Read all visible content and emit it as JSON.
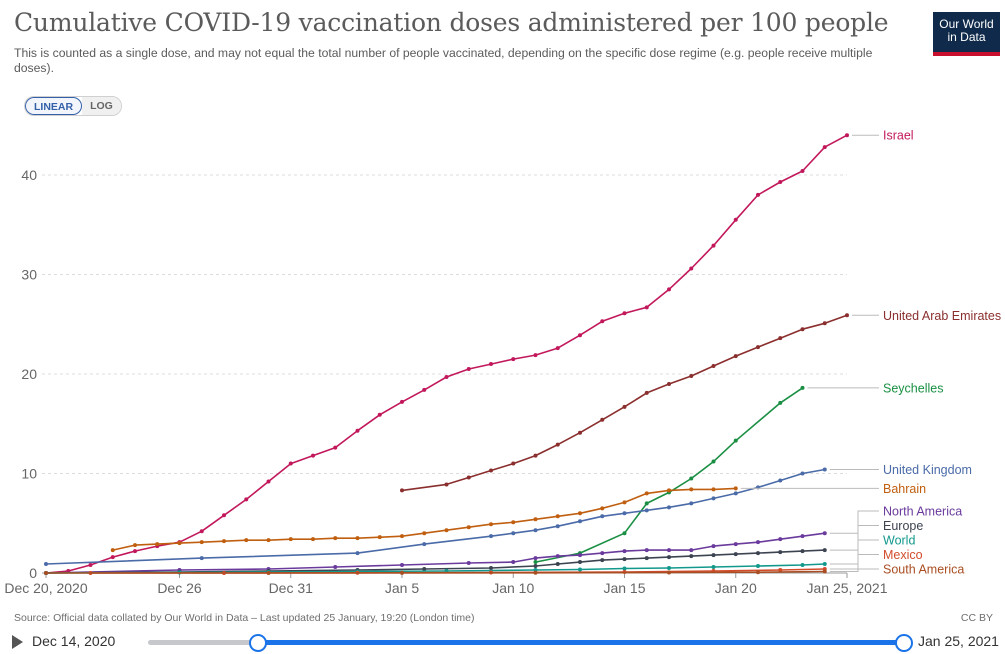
{
  "header": {
    "title": "Cumulative COVID-19 vaccination doses administered per 100 people",
    "subtitle": "This is counted as a single dose, and may not equal the total number of people vaccinated, depending on the specific dose regime (e.g. people receive multiple doses).",
    "logo_line1": "Our World",
    "logo_line2": "in Data",
    "logo_colors": {
      "background": "#0f2a4a",
      "stripe": "#c8102e"
    }
  },
  "scale_toggle": {
    "options": [
      "LINEAR",
      "LOG"
    ],
    "selected": "LINEAR"
  },
  "footer": {
    "source": "Source: Official data collated by Our World in Data – Last updated 25 January, 19:20 (London time)",
    "license": "CC BY"
  },
  "timeline": {
    "start_label": "Dec 14, 2020",
    "end_label": "Jan 25, 2021",
    "play_icon": "play-icon"
  },
  "chart_data": {
    "type": "line",
    "ylim": [
      0,
      44
    ],
    "y_ticks": [
      0,
      10,
      20,
      30,
      40
    ],
    "x_ticks": [
      {
        "day": 0,
        "label": "Dec 20, 2020"
      },
      {
        "day": 6,
        "label": "Dec 26"
      },
      {
        "day": 11,
        "label": "Dec 31"
      },
      {
        "day": 16,
        "label": "Jan 5"
      },
      {
        "day": 21,
        "label": "Jan 10"
      },
      {
        "day": 26,
        "label": "Jan 15"
      },
      {
        "day": 31,
        "label": "Jan 20"
      },
      {
        "day": 36,
        "label": "Jan 25, 2021"
      }
    ],
    "grid": "horizontal",
    "series": [
      {
        "name": "Israel",
        "color": "#c2185b",
        "values": [
          [
            0,
            0
          ],
          [
            1,
            0.2
          ],
          [
            2,
            0.8
          ],
          [
            3,
            1.6
          ],
          [
            4,
            2.2
          ],
          [
            5,
            2.7
          ],
          [
            6,
            3.1
          ],
          [
            7,
            4.2
          ],
          [
            8,
            5.8
          ],
          [
            9,
            7.4
          ],
          [
            10,
            9.2
          ],
          [
            11,
            11
          ],
          [
            12,
            11.8
          ],
          [
            13,
            12.6
          ],
          [
            14,
            14.3
          ],
          [
            15,
            15.9
          ],
          [
            16,
            17.2
          ],
          [
            17,
            18.4
          ],
          [
            18,
            19.7
          ],
          [
            19,
            20.5
          ],
          [
            20,
            21
          ],
          [
            21,
            21.5
          ],
          [
            22,
            21.9
          ],
          [
            23,
            22.6
          ],
          [
            24,
            23.9
          ],
          [
            25,
            25.3
          ],
          [
            26,
            26.1
          ],
          [
            27,
            26.7
          ],
          [
            28,
            28.5
          ],
          [
            29,
            30.6
          ],
          [
            30,
            32.9
          ],
          [
            31,
            35.5
          ],
          [
            32,
            38
          ],
          [
            33,
            39.3
          ],
          [
            34,
            40.4
          ],
          [
            35,
            42.8
          ],
          [
            36,
            44
          ]
        ]
      },
      {
        "name": "United Arab Emirates",
        "color": "#8b2e2e",
        "values": [
          [
            16,
            8.3
          ],
          [
            18,
            8.9
          ],
          [
            19,
            9.6
          ],
          [
            20,
            10.3
          ],
          [
            21,
            11
          ],
          [
            22,
            11.8
          ],
          [
            23,
            12.9
          ],
          [
            24,
            14.1
          ],
          [
            25,
            15.4
          ],
          [
            26,
            16.7
          ],
          [
            27,
            18.1
          ],
          [
            28,
            19
          ],
          [
            29,
            19.8
          ],
          [
            30,
            20.8
          ],
          [
            31,
            21.8
          ],
          [
            32,
            22.7
          ],
          [
            33,
            23.6
          ],
          [
            34,
            24.5
          ],
          [
            35,
            25.1
          ],
          [
            36,
            25.9
          ]
        ]
      },
      {
        "name": "Seychelles",
        "color": "#1a8f43",
        "values": [
          [
            22,
            1.1
          ],
          [
            24,
            2
          ],
          [
            26,
            4
          ],
          [
            27,
            7
          ],
          [
            28,
            8.1
          ],
          [
            29,
            9.5
          ],
          [
            30,
            11.2
          ],
          [
            31,
            13.3
          ],
          [
            33,
            17.1
          ],
          [
            34,
            18.6
          ]
        ]
      },
      {
        "name": "United Kingdom",
        "color": "#4a6ba8",
        "values": [
          [
            0,
            0.9
          ],
          [
            7,
            1.5
          ],
          [
            14,
            2
          ],
          [
            17,
            2.9
          ],
          [
            20,
            3.7
          ],
          [
            21,
            4
          ],
          [
            22,
            4.3
          ],
          [
            23,
            4.7
          ],
          [
            24,
            5.2
          ],
          [
            25,
            5.7
          ],
          [
            26,
            6
          ],
          [
            27,
            6.3
          ],
          [
            28,
            6.6
          ],
          [
            29,
            7
          ],
          [
            30,
            7.5
          ],
          [
            31,
            8
          ],
          [
            32,
            8.6
          ],
          [
            33,
            9.3
          ],
          [
            34,
            10
          ],
          [
            35,
            10.4
          ]
        ]
      },
      {
        "name": "Bahrain",
        "color": "#c05f10",
        "values": [
          [
            3,
            2.3
          ],
          [
            4,
            2.8
          ],
          [
            5,
            2.9
          ],
          [
            6,
            3
          ],
          [
            7,
            3.1
          ],
          [
            8,
            3.2
          ],
          [
            9,
            3.3
          ],
          [
            10,
            3.3
          ],
          [
            11,
            3.4
          ],
          [
            12,
            3.4
          ],
          [
            13,
            3.5
          ],
          [
            14,
            3.5
          ],
          [
            15,
            3.6
          ],
          [
            16,
            3.7
          ],
          [
            17,
            4
          ],
          [
            18,
            4.3
          ],
          [
            19,
            4.6
          ],
          [
            20,
            4.9
          ],
          [
            21,
            5.1
          ],
          [
            22,
            5.4
          ],
          [
            23,
            5.7
          ],
          [
            24,
            6
          ],
          [
            25,
            6.5
          ],
          [
            26,
            7.1
          ],
          [
            27,
            8
          ],
          [
            28,
            8.3
          ],
          [
            29,
            8.4
          ],
          [
            30,
            8.4
          ],
          [
            31,
            8.5
          ]
        ]
      },
      {
        "name": "North America",
        "color": "#6a3a9c",
        "values": [
          [
            0,
            0
          ],
          [
            6,
            0.3
          ],
          [
            10,
            0.4
          ],
          [
            13,
            0.6
          ],
          [
            16,
            0.8
          ],
          [
            19,
            1
          ],
          [
            21,
            1.1
          ],
          [
            22,
            1.5
          ],
          [
            23,
            1.7
          ],
          [
            24,
            1.8
          ],
          [
            25,
            2
          ],
          [
            26,
            2.2
          ],
          [
            27,
            2.3
          ],
          [
            28,
            2.3
          ],
          [
            29,
            2.3
          ],
          [
            30,
            2.7
          ],
          [
            31,
            2.9
          ],
          [
            32,
            3.1
          ],
          [
            33,
            3.4
          ],
          [
            34,
            3.7
          ],
          [
            35,
            4
          ]
        ]
      },
      {
        "name": "Europe",
        "color": "#3d4451",
        "values": [
          [
            0,
            0
          ],
          [
            6,
            0.1
          ],
          [
            10,
            0.2
          ],
          [
            14,
            0.3
          ],
          [
            17,
            0.4
          ],
          [
            20,
            0.5
          ],
          [
            22,
            0.7
          ],
          [
            23,
            0.9
          ],
          [
            24,
            1.1
          ],
          [
            25,
            1.3
          ],
          [
            26,
            1.4
          ],
          [
            27,
            1.5
          ],
          [
            28,
            1.6
          ],
          [
            29,
            1.7
          ],
          [
            30,
            1.8
          ],
          [
            31,
            1.9
          ],
          [
            32,
            2
          ],
          [
            33,
            2.1
          ],
          [
            34,
            2.2
          ],
          [
            35,
            2.3
          ]
        ]
      },
      {
        "name": "World",
        "color": "#12998c",
        "values": [
          [
            0,
            0
          ],
          [
            6,
            0.05
          ],
          [
            10,
            0.1
          ],
          [
            14,
            0.15
          ],
          [
            18,
            0.2
          ],
          [
            22,
            0.3
          ],
          [
            24,
            0.35
          ],
          [
            26,
            0.45
          ],
          [
            28,
            0.5
          ],
          [
            30,
            0.6
          ],
          [
            32,
            0.7
          ],
          [
            34,
            0.8
          ],
          [
            35,
            0.9
          ]
        ]
      },
      {
        "name": "Mexico",
        "color": "#d24c2c",
        "values": [
          [
            2,
            0
          ],
          [
            8,
            0
          ],
          [
            14,
            0.02
          ],
          [
            20,
            0.05
          ],
          [
            26,
            0.1
          ],
          [
            30,
            0.2
          ],
          [
            33,
            0.3
          ],
          [
            35,
            0.4
          ]
        ]
      },
      {
        "name": "South America",
        "color": "#a94e22",
        "values": [
          [
            0,
            0
          ],
          [
            10,
            0
          ],
          [
            16,
            0.01
          ],
          [
            22,
            0.02
          ],
          [
            28,
            0.05
          ],
          [
            32,
            0.08
          ],
          [
            35,
            0.15
          ]
        ]
      }
    ]
  }
}
